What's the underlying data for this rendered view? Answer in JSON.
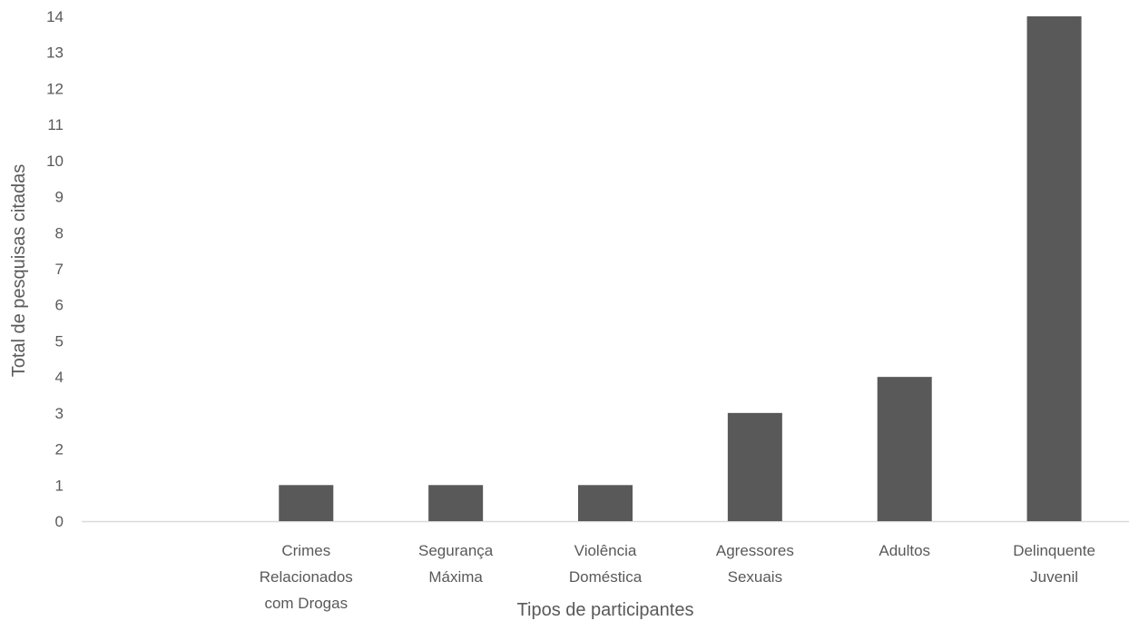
{
  "chart_data": {
    "type": "bar",
    "categories": [
      "",
      "Crimes Relacionados com Drogas",
      "Segurança Máxima",
      "Violência Doméstica",
      "Agressores Sexuais",
      "Adultos",
      "Delinquente Juvenil"
    ],
    "category_lines": [
      [],
      [
        "Crimes",
        "Relacionados",
        "com Drogas"
      ],
      [
        "Segurança",
        "Máxima"
      ],
      [
        "Violência",
        "Doméstica"
      ],
      [
        "Agressores",
        "Sexuais"
      ],
      [
        "Adultos"
      ],
      [
        "Delinquente",
        "Juvenil"
      ]
    ],
    "values": [
      null,
      1,
      1,
      1,
      3,
      4,
      14
    ],
    "title": "",
    "xlabel": "Tipos de participantes",
    "ylabel": "Total de pesquisas citadas",
    "ylim": [
      0,
      14
    ],
    "yticks": [
      0,
      1,
      2,
      3,
      4,
      5,
      6,
      7,
      8,
      9,
      10,
      11,
      12,
      13,
      14
    ],
    "grid": false,
    "legend": "none",
    "bar_color": "#595959",
    "axis_color": "#d9d9d9",
    "text_color": "#595959"
  }
}
